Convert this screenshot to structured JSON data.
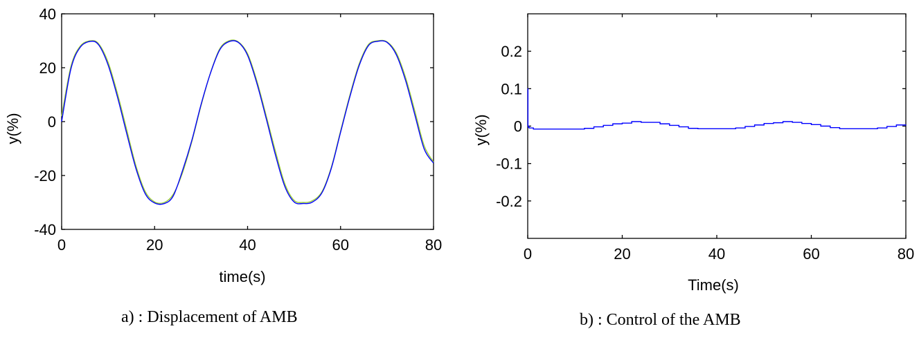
{
  "chart_data": [
    {
      "type": "line",
      "caption": "a) : Displacement of AMB",
      "xlabel": "time(s)",
      "ylabel": "y(%)",
      "xlim": [
        0,
        80
      ],
      "ylim": [
        -40,
        40
      ],
      "x_ticks": [
        "0",
        "20",
        "40",
        "60",
        "80"
      ],
      "y_ticks": [
        "40",
        "20",
        "0",
        "-20",
        "-40"
      ],
      "grid": false,
      "series": [
        {
          "color": "#9acd32",
          "x": [
            0,
            2,
            4,
            6.25,
            8,
            10,
            12,
            14,
            16,
            18,
            20,
            22.1,
            24,
            26,
            28,
            30,
            32,
            34,
            36,
            38,
            40,
            42,
            44,
            46,
            48,
            50,
            52,
            53.9,
            56,
            58,
            60,
            62,
            64,
            66,
            68,
            70,
            72,
            74,
            76,
            78,
            80
          ],
          "values": [
            2,
            20.5,
            28,
            30,
            28.8,
            22,
            10.5,
            -3,
            -16.5,
            -26,
            -29.8,
            -30,
            -27,
            -19,
            -7.5,
            6,
            18,
            27,
            30,
            29.6,
            25.2,
            15.1,
            2.2,
            -11,
            -23,
            -29.2,
            -30,
            -29.4,
            -26,
            -17,
            -3.5,
            9.8,
            21.4,
            28.6,
            30,
            29.6,
            25.5,
            16.3,
            3.8,
            -9,
            -15
          ]
        },
        {
          "color": "#0000ff",
          "x": [
            0,
            2,
            4,
            6.25,
            8,
            10,
            12,
            14,
            16,
            18,
            20,
            22.1,
            24,
            26,
            28,
            30,
            32,
            34,
            36,
            38,
            40,
            42,
            44,
            46,
            48,
            50,
            52,
            53.9,
            56,
            58,
            60,
            62,
            64,
            66,
            68,
            70,
            72,
            74,
            76,
            78,
            80
          ],
          "values": [
            0,
            19.6,
            27.6,
            29.8,
            28.4,
            21,
            9.2,
            -4.4,
            -17.5,
            -26.8,
            -30.2,
            -30.4,
            -27.6,
            -18.2,
            -7,
            6.4,
            17.9,
            26.6,
            29.7,
            29.4,
            24.6,
            14.2,
            1.2,
            -12.4,
            -24,
            -29.8,
            -30.4,
            -29.9,
            -26.4,
            -17.4,
            -4,
            9.2,
            20.8,
            28.2,
            29.8,
            29.4,
            24.8,
            15.2,
            2.4,
            -10.2,
            -15.4
          ]
        }
      ]
    },
    {
      "type": "line",
      "caption": "b) : Control of the AMB",
      "xlabel": "Time(s)",
      "ylabel": "y(%)",
      "xlim": [
        0,
        80
      ],
      "ylim": [
        -0.3,
        0.3
      ],
      "x_ticks": [
        "0",
        "20",
        "40",
        "60",
        "80"
      ],
      "y_ticks": [
        "0.2",
        "0.1",
        "0",
        "-0.1",
        "-0.2"
      ],
      "grid": false,
      "series": [
        {
          "color": "#0000ff",
          "x": [
            0,
            0.05,
            0.15,
            0.3,
            1.2,
            10,
            12,
            14,
            16,
            18,
            20,
            22,
            24,
            26,
            28,
            30,
            32,
            34,
            36,
            38,
            40,
            42,
            44,
            46,
            48,
            50,
            52,
            54,
            56,
            58,
            60,
            62,
            64,
            66,
            68,
            70,
            72,
            74,
            76,
            78,
            80
          ],
          "values": [
            0.1,
            0.0,
            -0.003,
            -0.005,
            -0.008,
            -0.008,
            -0.006,
            -0.002,
            0.002,
            0.006,
            0.008,
            0.012,
            0.01,
            0.01,
            0.006,
            0.002,
            -0.002,
            -0.006,
            -0.007,
            -0.007,
            -0.007,
            -0.007,
            -0.005,
            -0.001,
            0.003,
            0.007,
            0.009,
            0.012,
            0.01,
            0.007,
            0.004,
            0.0,
            -0.004,
            -0.007,
            -0.007,
            -0.007,
            -0.007,
            -0.005,
            -0.001,
            0.003,
            0.004
          ]
        }
      ]
    }
  ]
}
